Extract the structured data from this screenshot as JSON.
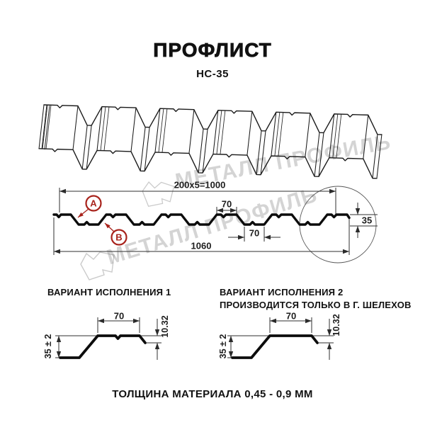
{
  "header": {
    "title": "ПРОФЛИСТ",
    "subtitle": "НС-35"
  },
  "cross_section": {
    "dim_module_width": "200x5=1000",
    "dim_rib_top": "70",
    "dim_rib_bottom": "70",
    "dim_overall_width": "1060",
    "dim_height": "35",
    "callout_a": "А",
    "callout_b": "В"
  },
  "variant1": {
    "heading": "ВАРИАНТ ИСПОЛНЕНИЯ 1",
    "dim_top": "70",
    "dim_lip": "10.32",
    "dim_height": "35 ± 2"
  },
  "variant2": {
    "heading_line1": "ВАРИАНТ ИСПОЛНЕНИЯ 2",
    "heading_line2": "ПРОИЗВОДИТСЯ ТОЛЬКО В Г. ШЕЛЕХОВ",
    "dim_top": "70",
    "dim_lip": "10.32",
    "dim_height": "35 ± 2"
  },
  "footer": {
    "thickness_note": "ТОЛЩИНА МАТЕРИАЛА 0,45 - 0,9 ММ"
  },
  "watermark": {
    "text": "МЕТАЛЛ ПРОФИЛЬ",
    "color": "#c9c9c9"
  },
  "colors": {
    "accent_red": "#a8231c",
    "line": "#1d1d1d",
    "thin_line": "#2f2f2f"
  }
}
